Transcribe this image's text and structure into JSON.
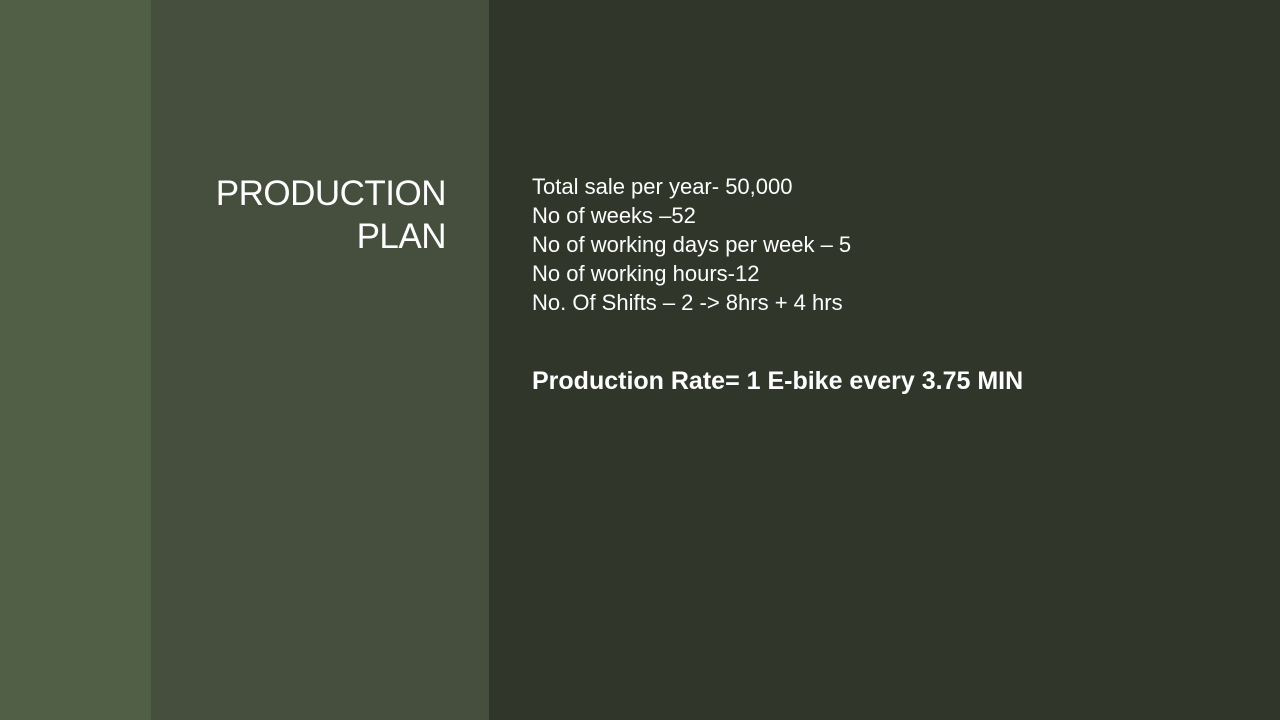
{
  "slide": {
    "title_lines": [
      "PRODUCTION",
      "PLAN"
    ],
    "bullets": [
      "Total sale per year- 50,000",
      "No of weeks –52",
      "No of working days per week – 5",
      "No of working hours-12",
      "No. Of Shifts – 2 -> 8hrs + 4 hrs"
    ],
    "production_rate": "Production Rate= 1 E-bike every 3.75 MIN"
  },
  "colors": {
    "band_left": "#515f46",
    "band_mid": "#464f3e",
    "background": "#31362a",
    "text": "#ffffff"
  }
}
